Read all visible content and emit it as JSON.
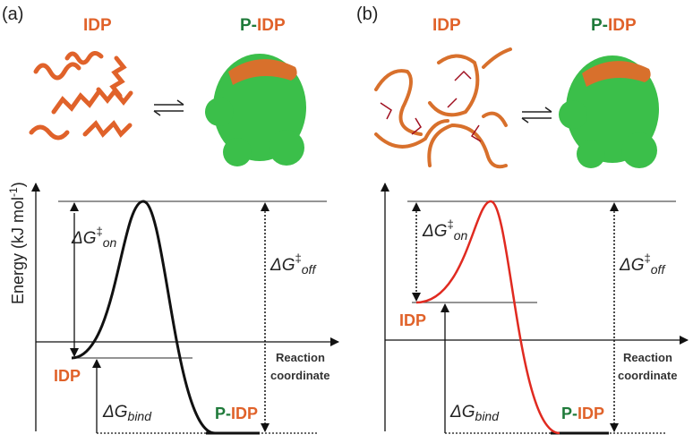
{
  "panels": [
    {
      "label": "(a)",
      "top_left": "IDP",
      "top_right": {
        "prefix": "P-",
        "suffix": "IDP"
      },
      "y_axis": {
        "text": "Energy (kJ mol",
        "sup": "-1",
        "close": ")"
      },
      "dg_on": {
        "base": "ΔG",
        "dagger": "‡",
        "sub": "on"
      },
      "dg_off": {
        "base": "ΔG",
        "dagger": "‡",
        "sub": "off"
      },
      "dg_bind": {
        "base": "ΔG",
        "sub": "bind"
      },
      "idp_level": "IDP",
      "x_axis": [
        "Reaction",
        "coordinate"
      ],
      "bound_level": {
        "prefix": "P-",
        "suffix": "IDP"
      }
    },
    {
      "label": "(b)",
      "top_left": "IDP",
      "top_right": {
        "prefix": "P-",
        "suffix": "IDP"
      },
      "dg_on": {
        "base": "ΔG",
        "dagger": "‡",
        "sub": "on"
      },
      "dg_off": {
        "base": "ΔG",
        "dagger": "‡",
        "sub": "off"
      },
      "dg_bind": {
        "base": "ΔG",
        "sub": "bind"
      },
      "idp_level": "IDP",
      "x_axis": [
        "Reaction",
        "coordinate"
      ],
      "bound_level": {
        "prefix": "P-",
        "suffix": "IDP"
      }
    }
  ]
}
